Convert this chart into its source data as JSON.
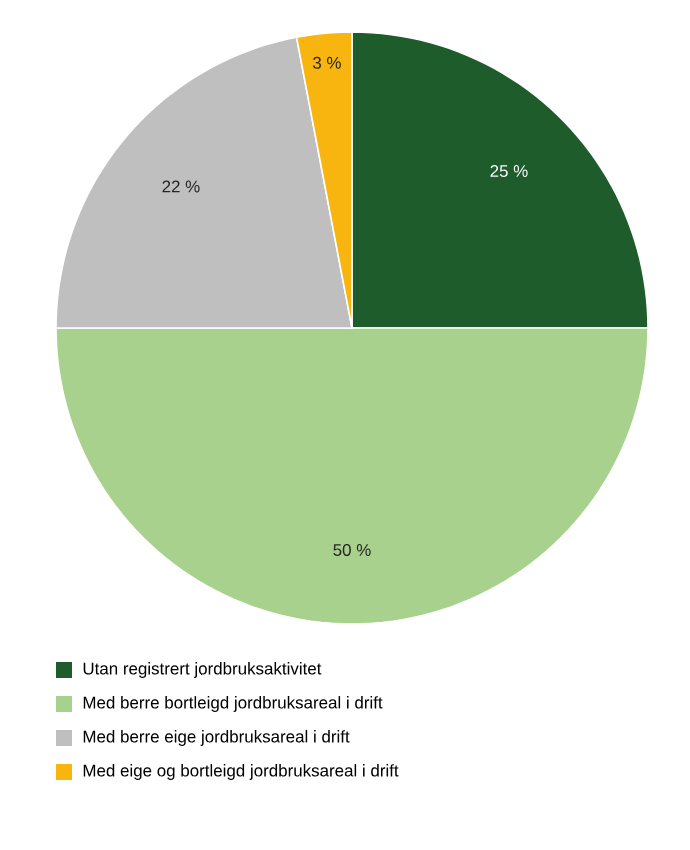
{
  "chart_data": {
    "type": "pie",
    "categories": [
      "Utan registrert jordbruksaktivitet",
      "Med berre bortleigd jordbruksareal i drift",
      "Med berre eige jordbruksareal i drift",
      "Med eige og bortleigd jordbruksareal i drift"
    ],
    "values": [
      25,
      50,
      22,
      3
    ],
    "value_labels": [
      "25 %",
      "50 %",
      "22 %",
      "3 %"
    ],
    "colors": [
      "#1e5c2c",
      "#a9d18e",
      "#bfbfbf",
      "#f8b50f"
    ],
    "legend": "bottom"
  }
}
